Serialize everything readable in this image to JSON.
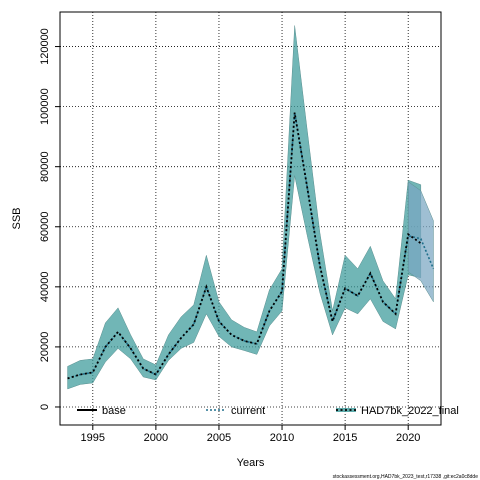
{
  "chart_data": {
    "type": "line",
    "xlabel": "Years",
    "ylabel": "SSB",
    "xlim": [
      1992.4,
      2022.6
    ],
    "ylim": [
      -6000,
      131500
    ],
    "xticks": [
      1995,
      2000,
      2005,
      2010,
      2015,
      2020
    ],
    "yticks": [
      0,
      20000,
      40000,
      60000,
      80000,
      100000,
      120000
    ],
    "grid": true,
    "legend_placement": "bottom",
    "legend": [
      {
        "name": "base",
        "style": "solid",
        "color": "#000000"
      },
      {
        "name": "current",
        "style": "dotted",
        "color": "#1f6f8b"
      },
      {
        "name": "HAD7bk_2022_final",
        "style": "dotted",
        "color": "#0e6b6b"
      }
    ],
    "bands": [
      {
        "color": "#3a9a9a",
        "x": [
          1993,
          1994,
          1995,
          1996,
          1997,
          1998,
          1999,
          2000,
          2001,
          2002,
          2003,
          2004,
          2005,
          2006,
          2007,
          2008,
          2009,
          2010,
          2011,
          2012,
          2013,
          2014,
          2015,
          2016,
          2017,
          2018,
          2019,
          2020,
          2021
        ],
        "upper": [
          13500,
          15500,
          16000,
          28000,
          33000,
          24000,
          16000,
          14000,
          24000,
          30000,
          34000,
          50500,
          35000,
          29000,
          26500,
          25000,
          39000,
          46000,
          127000,
          92000,
          58000,
          32000,
          50500,
          46000,
          53500,
          42000,
          36000,
          75500,
          74000
        ],
        "lower": [
          6000,
          7500,
          8000,
          15000,
          19500,
          16000,
          10000,
          9000,
          15500,
          19500,
          21500,
          31000,
          23500,
          20000,
          18800,
          17500,
          27000,
          32000,
          77000,
          57000,
          38000,
          24000,
          33000,
          31000,
          36000,
          28500,
          26000,
          44000,
          43000
        ]
      },
      {
        "color": "#7aa6c2",
        "x": [
          2020,
          2021,
          2022
        ],
        "upper": [
          75000,
          72000,
          62000
        ],
        "lower": [
          45000,
          42000,
          35000
        ]
      }
    ],
    "series": [
      {
        "name": "current",
        "x": [
          1993,
          1994,
          1995,
          1996,
          1997,
          1998,
          1999,
          2000,
          2001,
          2002,
          2003,
          2004,
          2005,
          2006,
          2007,
          2008,
          2009,
          2010,
          2011,
          2012,
          2013,
          2014,
          2015,
          2016,
          2017,
          2018,
          2019,
          2020,
          2021,
          2022
        ],
        "values": [
          9500,
          10800,
          11500,
          20000,
          25000,
          19500,
          12800,
          10800,
          17500,
          23000,
          27500,
          40000,
          28500,
          24000,
          22000,
          21000,
          32000,
          38500,
          98000,
          73000,
          47000,
          28500,
          39500,
          37000,
          44500,
          35000,
          31000,
          57000,
          56000,
          46000
        ]
      },
      {
        "name": "HAD7bk_2022_final",
        "x": [
          1993,
          1994,
          1995,
          1996,
          1997,
          1998,
          1999,
          2000,
          2001,
          2002,
          2003,
          2004,
          2005,
          2006,
          2007,
          2008,
          2009,
          2010,
          2011,
          2012,
          2013,
          2014,
          2015,
          2016,
          2017,
          2018,
          2019,
          2020,
          2021
        ],
        "values": [
          9500,
          10800,
          11500,
          20000,
          25000,
          19500,
          12800,
          10800,
          17500,
          23000,
          27500,
          40000,
          28500,
          24000,
          22000,
          21000,
          32000,
          38500,
          98000,
          73000,
          47000,
          28500,
          39500,
          37000,
          44500,
          35000,
          31000,
          57500,
          54500
        ]
      }
    ],
    "footer": "stockassessment.org,HAD7bk_2023_test,r17338 ,git:ec2a0c8dde"
  }
}
